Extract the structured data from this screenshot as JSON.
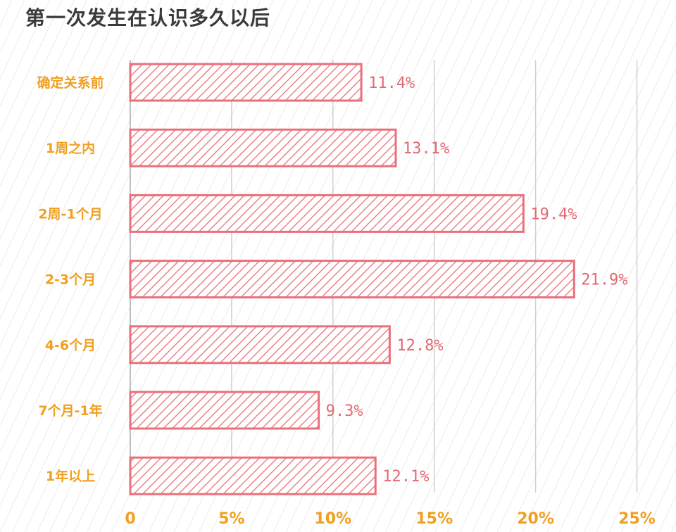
{
  "title": "第一次发生在认识多久以后",
  "colors": {
    "bar": "#e8707a",
    "bar_fill": "#ffffff",
    "category_text": "#f0a020",
    "tick_text": "#f0a020",
    "value_text": "#e06a72",
    "title_text": "#3a3a3a",
    "grid": "#d0d0d0"
  },
  "chart_data": {
    "type": "bar",
    "orientation": "horizontal",
    "title": "第一次发生在认识多久以后",
    "categories": [
      "确定关系前",
      "1周之内",
      "2周-1个月",
      "2-3个月",
      "4-6个月",
      "7个月-1年",
      "1年以上"
    ],
    "values": [
      11.4,
      13.1,
      19.4,
      21.9,
      12.8,
      9.3,
      12.1
    ],
    "value_labels": [
      "11.4%",
      "13.1%",
      "19.4%",
      "21.9%",
      "12.8%",
      "9.3%",
      "12.1%"
    ],
    "xlim": [
      0,
      25
    ],
    "x_ticks": [
      0,
      5,
      10,
      15,
      20,
      25
    ],
    "x_tick_labels": [
      "0",
      "5%",
      "10%",
      "15%",
      "20%",
      "25%"
    ],
    "xlabel": "",
    "ylabel": "",
    "grid": true,
    "bar_pattern": "diagonal-hatch"
  }
}
